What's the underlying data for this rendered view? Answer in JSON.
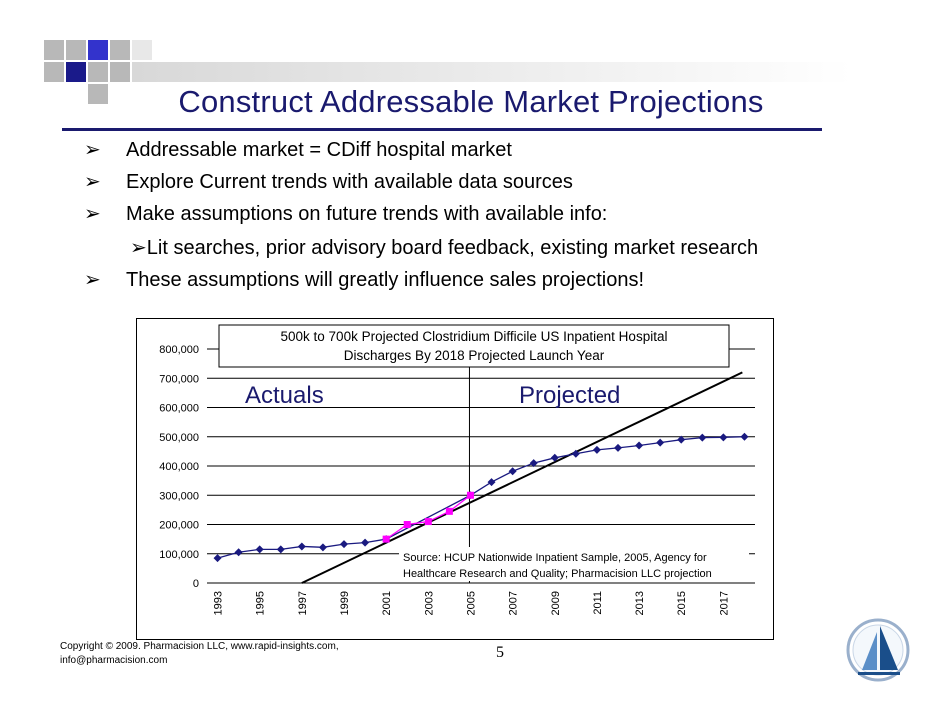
{
  "slide": {
    "title": "Construct Addressable Market Projections",
    "bullets": [
      {
        "text": "Addressable market = CDiff hospital market",
        "level": 1
      },
      {
        "text": "Explore Current trends with available data sources",
        "level": 1
      },
      {
        "text": "Make assumptions on future trends with available info:",
        "level": 1
      },
      {
        "text": "Lit searches, prior advisory board feedback, existing market research",
        "level": 2
      },
      {
        "text": "These assumptions will greatly influence sales projections!",
        "level": 1
      }
    ],
    "footer": {
      "copyright_line1": "Copyright © 2009. Pharmacision LLC, www.rapid-insights.com,",
      "copyright_line2": "info@pharmacision.com",
      "page_number": "5"
    },
    "colors": {
      "title": "#1a1a6e",
      "square_dark": "#1a1a8a",
      "square_blue": "#3333cc",
      "square_gray": "#b8b8b8"
    }
  },
  "chart_data": {
    "type": "line",
    "title_line1": "500k to 700k Projected Clostridium Difficile US Inpatient Hospital",
    "title_line2": "Discharges By 2018 Projected Launch Year",
    "region_labels": {
      "left": "Actuals",
      "right": "Projected"
    },
    "source_line1": "Source: HCUP Nationwide Inpatient Sample, 2005, Agency for",
    "source_line2": "Healthcare Research and Quality; Pharmacision LLC projection",
    "divider_x": 2005,
    "ylim": [
      0,
      800000
    ],
    "y_ticks": [
      0,
      100000,
      200000,
      300000,
      400000,
      500000,
      600000,
      700000,
      800000
    ],
    "y_tick_labels": [
      "0",
      "100,000",
      "200,000",
      "300,000",
      "400,000",
      "500,000",
      "600,000",
      "700,000",
      "800,000"
    ],
    "xlim": [
      1992.5,
      2018.5
    ],
    "x_tick_labels": [
      "1993",
      "1995",
      "1997",
      "1999",
      "2001",
      "2003",
      "2005",
      "2007",
      "2009",
      "2011",
      "2013",
      "2015",
      "2017"
    ],
    "series": [
      {
        "marker": "diamond",
        "color": "#1a1a80",
        "points": [
          [
            1993,
            85000
          ],
          [
            1994,
            105000
          ],
          [
            1995,
            115000
          ],
          [
            1996,
            115000
          ],
          [
            1997,
            125000
          ],
          [
            1998,
            122000
          ],
          [
            1999,
            133000
          ],
          [
            2000,
            138000
          ],
          [
            2001,
            150000
          ],
          [
            2005,
            300000
          ],
          [
            2006,
            345000
          ],
          [
            2007,
            382000
          ],
          [
            2008,
            410000
          ],
          [
            2009,
            428000
          ],
          [
            2010,
            442000
          ],
          [
            2011,
            455000
          ],
          [
            2012,
            462000
          ],
          [
            2013,
            470000
          ],
          [
            2014,
            480000
          ],
          [
            2015,
            490000
          ],
          [
            2016,
            497000
          ],
          [
            2017,
            498000
          ],
          [
            2018,
            500000
          ]
        ]
      },
      {
        "marker": "square",
        "color": "#ff00ff",
        "points": [
          [
            2001,
            150000
          ],
          [
            2002,
            200000
          ],
          [
            2003,
            210000
          ],
          [
            2004,
            245000
          ],
          [
            2005,
            300000
          ]
        ]
      }
    ],
    "trendline": {
      "color": "#000000",
      "x1": 1997,
      "y1": 0,
      "x2": 2017.9,
      "y2": 720000
    }
  }
}
